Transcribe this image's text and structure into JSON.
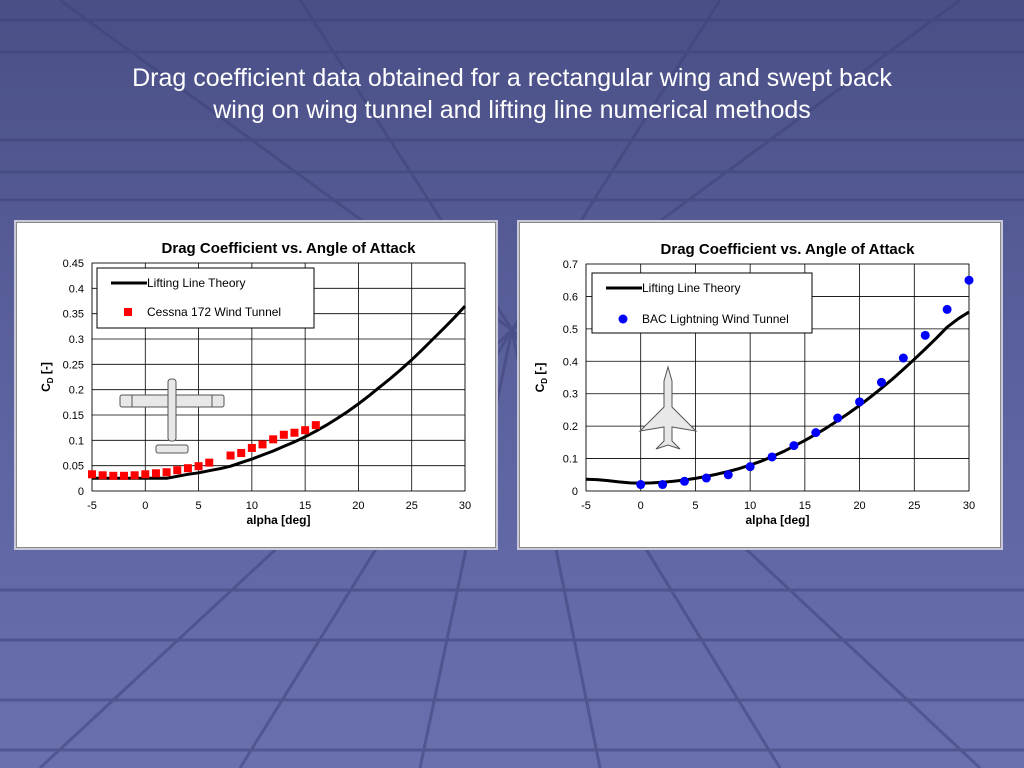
{
  "slide": {
    "title_line1": "Drag coefficient data obtained for a rectangular wing and swept back",
    "title_line2": "wing on wing tunnel and lifting line numerical methods"
  },
  "colors": {
    "background": "#5a609c",
    "line": "#000000",
    "cessna_marker": "#ff0000",
    "bac_marker": "#0000ff"
  },
  "chart_data": [
    {
      "type": "scatter",
      "title": "Drag Coefficient vs. Angle of Attack",
      "xlabel": "alpha [deg]",
      "ylabel": "C_D [-]",
      "xlim": [
        -5,
        30
      ],
      "ylim": [
        0,
        0.45
      ],
      "xticks": [
        "-5",
        "0",
        "5",
        "10",
        "15",
        "20",
        "25",
        "30"
      ],
      "yticks": [
        "0",
        "0.05",
        "0.1",
        "0.15",
        "0.2",
        "0.25",
        "0.3",
        "0.35",
        "0.4",
        "0.45"
      ],
      "grid": true,
      "legend_position": "top-left",
      "series": [
        {
          "name": "Lifting Line Theory",
          "kind": "line",
          "x": [
            -5,
            -4,
            -3,
            -2,
            -1,
            0,
            1,
            2,
            3,
            4,
            5,
            6,
            7,
            8,
            9,
            10,
            11,
            12,
            13,
            14,
            15,
            16,
            17,
            18,
            19,
            20,
            21,
            22,
            23,
            24,
            25,
            26,
            27,
            28,
            29,
            30
          ],
          "y": [
            0.025,
            0.025,
            0.025,
            0.025,
            0.025,
            0.025,
            0.025,
            0.025,
            0.029,
            0.033,
            0.036,
            0.04,
            0.044,
            0.049,
            0.056,
            0.063,
            0.071,
            0.079,
            0.088,
            0.097,
            0.107,
            0.118,
            0.13,
            0.143,
            0.157,
            0.172,
            0.188,
            0.205,
            0.222,
            0.24,
            0.259,
            0.279,
            0.3,
            0.321,
            0.342,
            0.365
          ]
        },
        {
          "name": "Cessna 172 Wind Tunnel",
          "kind": "marker",
          "marker": "square",
          "x": [
            -5,
            -4,
            -3,
            -2,
            -1,
            0,
            1,
            2,
            3,
            4,
            5,
            6,
            8,
            9,
            10,
            11,
            12,
            13,
            14,
            15,
            16
          ],
          "y": [
            0.033,
            0.031,
            0.03,
            0.03,
            0.031,
            0.033,
            0.035,
            0.037,
            0.041,
            0.045,
            0.049,
            0.056,
            0.07,
            0.075,
            0.085,
            0.092,
            0.102,
            0.111,
            0.115,
            0.12,
            0.13
          ]
        }
      ]
    },
    {
      "type": "scatter",
      "title": "Drag Coefficient vs. Angle of Attack",
      "xlabel": "alpha [deg]",
      "ylabel": "C_D [-]",
      "xlim": [
        -5,
        30
      ],
      "ylim": [
        0,
        0.7
      ],
      "xticks": [
        "-5",
        "0",
        "5",
        "10",
        "15",
        "20",
        "25",
        "30"
      ],
      "yticks": [
        "0",
        "0.1",
        "0.2",
        "0.3",
        "0.4",
        "0.5",
        "0.6",
        "0.7"
      ],
      "grid": true,
      "legend_position": "top-left",
      "series": [
        {
          "name": "Lifting Line Theory",
          "kind": "line",
          "x": [
            -5,
            -4,
            -3,
            -2,
            -1,
            0,
            1,
            2,
            3,
            4,
            5,
            6,
            7,
            8,
            9,
            10,
            11,
            12,
            13,
            14,
            15,
            16,
            17,
            18,
            19,
            20,
            21,
            22,
            23,
            24,
            25,
            26,
            27,
            28,
            29,
            30
          ],
          "y": [
            0.036,
            0.035,
            0.032,
            0.028,
            0.025,
            0.024,
            0.025,
            0.027,
            0.03,
            0.034,
            0.039,
            0.045,
            0.052,
            0.06,
            0.069,
            0.08,
            0.092,
            0.106,
            0.121,
            0.138,
            0.156,
            0.175,
            0.195,
            0.217,
            0.24,
            0.264,
            0.29,
            0.317,
            0.345,
            0.375,
            0.406,
            0.438,
            0.471,
            0.505,
            0.531,
            0.552
          ]
        },
        {
          "name": "BAC Lightning Wind Tunnel",
          "kind": "marker",
          "marker": "circle",
          "x": [
            0,
            2,
            4,
            6,
            8,
            10,
            12,
            14,
            16,
            18,
            20,
            22,
            24,
            26,
            28,
            30
          ],
          "y": [
            0.02,
            0.02,
            0.03,
            0.04,
            0.05,
            0.075,
            0.105,
            0.14,
            0.18,
            0.225,
            0.275,
            0.335,
            0.41,
            0.48,
            0.56,
            0.65
          ]
        }
      ]
    }
  ]
}
